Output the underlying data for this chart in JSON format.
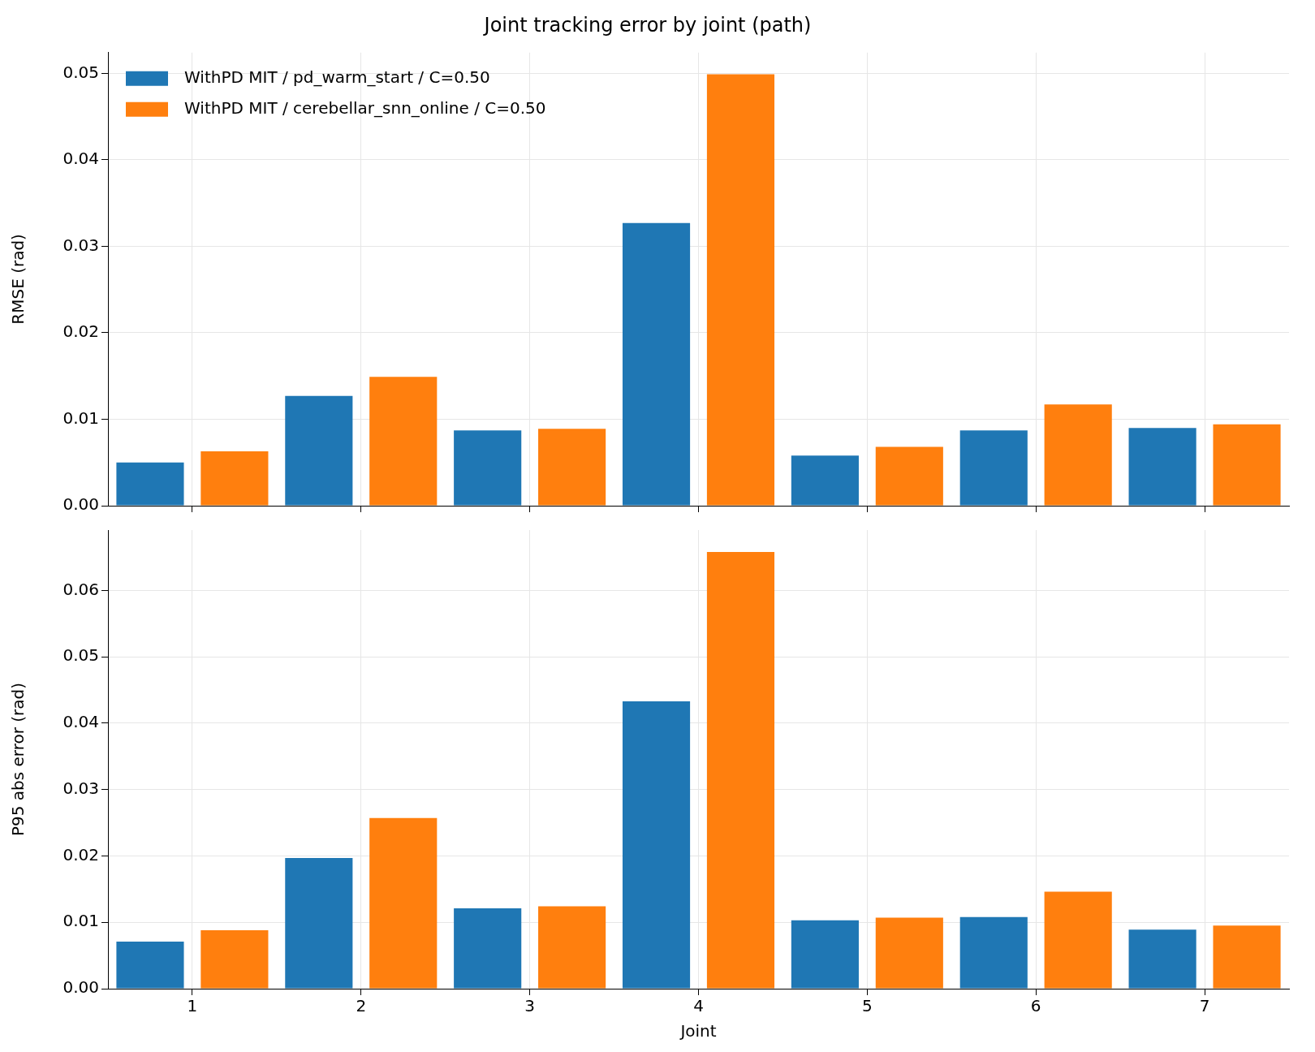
{
  "chart_data": [
    {
      "type": "bar",
      "title": "Joint tracking error by joint (path)",
      "ylabel": "RMSE (rad)",
      "categories": [
        "1",
        "2",
        "3",
        "4",
        "5",
        "6",
        "7"
      ],
      "series": [
        {
          "name": "WithPD MIT / pd_warm_start / C=0.50",
          "color": "#1f77b4",
          "values": [
            0.005,
            0.0127,
            0.0087,
            0.0327,
            0.0058,
            0.0087,
            0.009
          ]
        },
        {
          "name": "WithPD MIT / cerebellar_snn_online / C=0.50",
          "color": "#ff7f0e",
          "values": [
            0.0063,
            0.0149,
            0.0089,
            0.0499,
            0.0068,
            0.0117,
            0.0094
          ]
        }
      ],
      "ylim": [
        0,
        0.0524
      ],
      "yticks": [
        {
          "value": 0,
          "label": "0.00"
        },
        {
          "value": 0.01,
          "label": "0.01"
        },
        {
          "value": 0.02,
          "label": "0.02"
        },
        {
          "value": 0.03,
          "label": "0.03"
        },
        {
          "value": 0.04,
          "label": "0.04"
        },
        {
          "value": 0.05,
          "label": "0.05"
        }
      ],
      "grid": true,
      "legend": "top left",
      "tick_labels": "y"
    },
    {
      "type": "bar",
      "xlabel": "Joint",
      "ylabel": "P95 abs error (rad)",
      "categories": [
        "1",
        "2",
        "3",
        "4",
        "5",
        "6",
        "7"
      ],
      "series": [
        {
          "color": "#1f77b4",
          "values": [
            0.0071,
            0.0197,
            0.0121,
            0.0433,
            0.0103,
            0.0108,
            0.0089
          ]
        },
        {
          "color": "#ff7f0e",
          "values": [
            0.0088,
            0.0257,
            0.0124,
            0.0658,
            0.0107,
            0.0146,
            0.0095
          ]
        }
      ],
      "ylim": [
        0,
        0.0691
      ],
      "yticks": [
        {
          "value": 0,
          "label": "0.00"
        },
        {
          "value": 0.01,
          "label": "0.01"
        },
        {
          "value": 0.02,
          "label": "0.02"
        },
        {
          "value": 0.03,
          "label": "0.03"
        },
        {
          "value": 0.04,
          "label": "0.04"
        },
        {
          "value": 0.05,
          "label": "0.05"
        },
        {
          "value": 0.06,
          "label": "0.06"
        }
      ],
      "grid": true
    }
  ]
}
